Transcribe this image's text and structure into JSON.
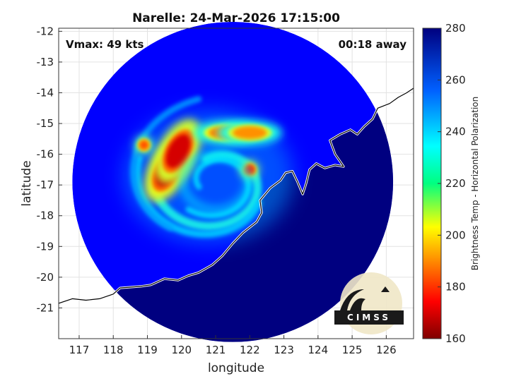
{
  "chart_data": {
    "type": "heatmap",
    "title": "Narelle: 24-Mar-2026 17:15:00",
    "annotations": {
      "vmax": "Vmax: 49 kts",
      "time_away": "00:18 away"
    },
    "xlabel": "longitude",
    "ylabel": "latitude",
    "xlim": [
      116.4,
      126.8
    ],
    "ylim": [
      -22,
      -11.9
    ],
    "x_ticks": [
      117,
      118,
      119,
      120,
      121,
      122,
      123,
      124,
      125,
      126
    ],
    "y_ticks": [
      -12,
      -13,
      -14,
      -15,
      -16,
      -17,
      -18,
      -19,
      -20,
      -21
    ],
    "grid": true,
    "colorbar": {
      "label": "Brightness Temp - Horizontal Polarization",
      "range": [
        160,
        280
      ],
      "ticks": [
        160,
        180,
        200,
        220,
        240,
        260,
        280
      ],
      "colormap": "jet",
      "position": "right"
    },
    "swath": {
      "center_lon": 121.5,
      "center_lat": -16.9,
      "radius_deg": 4.7
    },
    "storm_center": {
      "lon": 121.0,
      "lat": -16.9
    },
    "background_temp": 265,
    "features": [
      {
        "kind": "eyewall",
        "lon": 119.6,
        "lat": -16.5,
        "temp": 168
      },
      {
        "kind": "eyewall",
        "lon": 119.9,
        "lat": -15.9,
        "temp": 170
      },
      {
        "kind": "rainband",
        "lon": 121.3,
        "lat": -15.3,
        "temp": 190
      },
      {
        "kind": "rainband",
        "lon": 122.0,
        "lat": -15.3,
        "temp": 192
      },
      {
        "kind": "cell",
        "lon": 122.0,
        "lat": -16.5,
        "temp": 178
      },
      {
        "kind": "cell",
        "lon": 118.9,
        "lat": -15.7,
        "temp": 185
      },
      {
        "kind": "warm_ring",
        "lon": 121.0,
        "lat": -16.9,
        "temp": 238
      },
      {
        "kind": "land",
        "lon": 124.5,
        "lat": -19.5,
        "temp": 280
      }
    ],
    "coastline": [
      [
        116.4,
        -20.85
      ],
      [
        116.8,
        -20.7
      ],
      [
        117.2,
        -20.75
      ],
      [
        117.6,
        -20.7
      ],
      [
        118.0,
        -20.55
      ],
      [
        118.2,
        -20.35
      ],
      [
        118.8,
        -20.3
      ],
      [
        119.1,
        -20.25
      ],
      [
        119.5,
        -20.05
      ],
      [
        119.9,
        -20.1
      ],
      [
        120.2,
        -19.95
      ],
      [
        120.5,
        -19.85
      ],
      [
        120.9,
        -19.6
      ],
      [
        121.2,
        -19.3
      ],
      [
        121.5,
        -18.9
      ],
      [
        121.8,
        -18.55
      ],
      [
        122.2,
        -18.2
      ],
      [
        122.35,
        -17.9
      ],
      [
        122.3,
        -17.5
      ],
      [
        122.6,
        -17.1
      ],
      [
        122.9,
        -16.85
      ],
      [
        123.05,
        -16.6
      ],
      [
        123.25,
        -16.55
      ],
      [
        123.4,
        -16.9
      ],
      [
        123.55,
        -17.3
      ],
      [
        123.65,
        -16.95
      ],
      [
        123.75,
        -16.5
      ],
      [
        123.95,
        -16.3
      ],
      [
        124.2,
        -16.45
      ],
      [
        124.5,
        -16.35
      ],
      [
        124.75,
        -16.4
      ],
      [
        124.5,
        -16.0
      ],
      [
        124.35,
        -15.55
      ],
      [
        124.65,
        -15.35
      ],
      [
        124.95,
        -15.2
      ],
      [
        125.15,
        -15.35
      ],
      [
        125.35,
        -15.1
      ],
      [
        125.6,
        -14.85
      ],
      [
        125.75,
        -14.5
      ],
      [
        126.1,
        -14.35
      ],
      [
        126.35,
        -14.15
      ],
      [
        126.6,
        -14.0
      ],
      [
        126.8,
        -13.85
      ]
    ],
    "credit_logo": "CIMSS"
  }
}
